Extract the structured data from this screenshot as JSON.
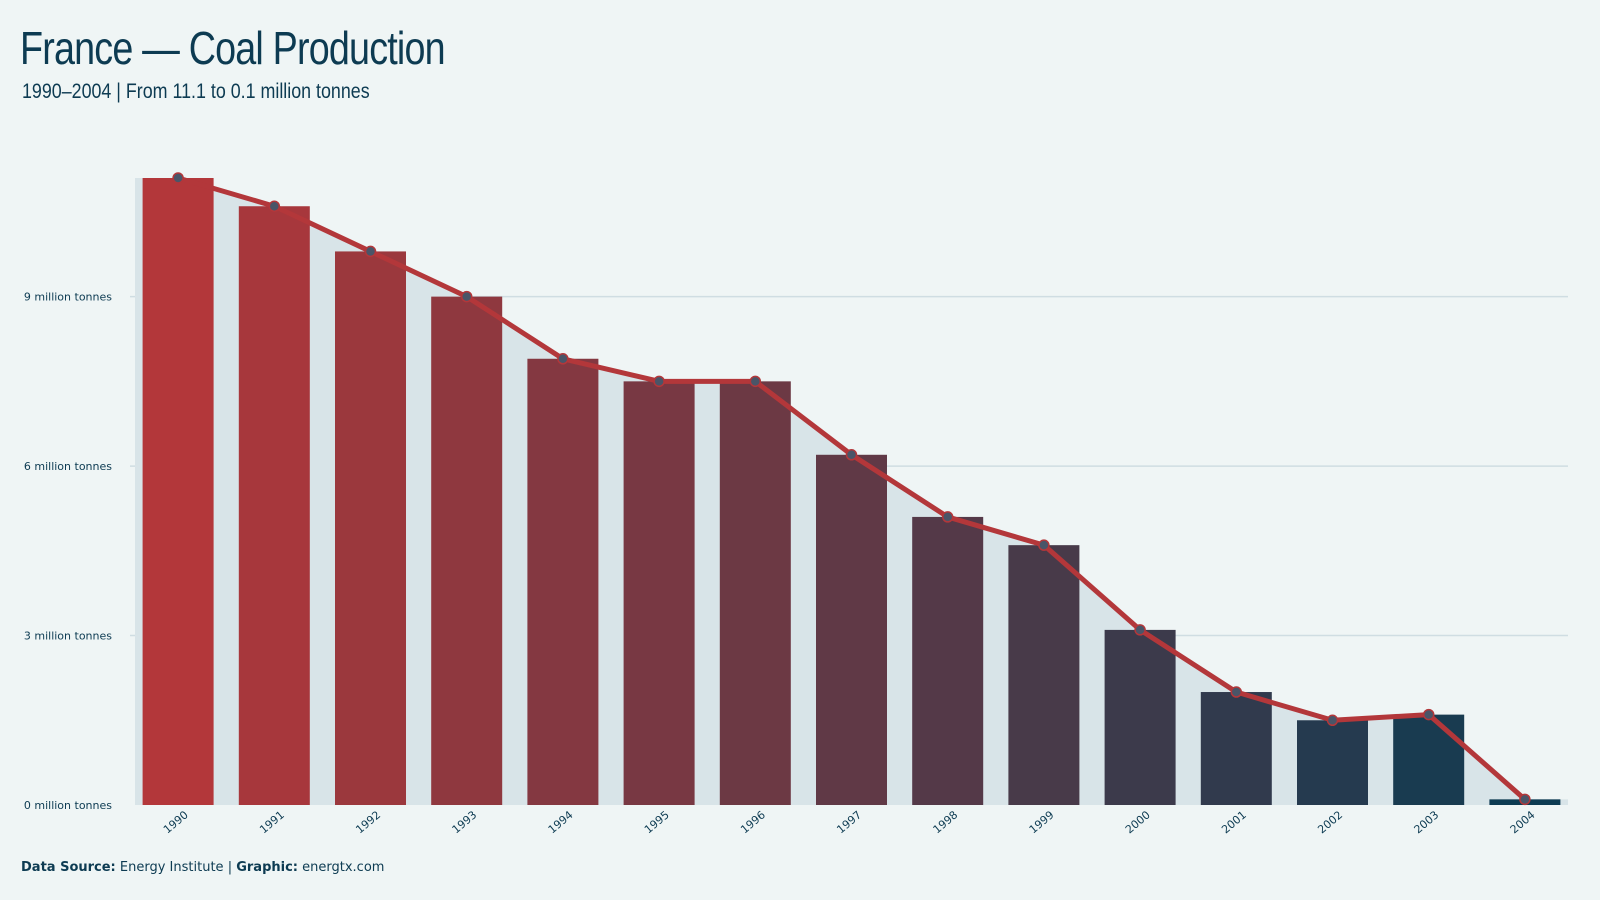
{
  "header": {
    "title": "France — Coal Production",
    "subtitle": "1990–2004 | From 11.1 to 0.1 million tonnes"
  },
  "footer": {
    "source_label": "Data Source:",
    "source_value": "Energy Institute",
    "separator": "|",
    "graphic_label": "Graphic:",
    "graphic_value": "energtx.com"
  },
  "colors": {
    "background": "#eff5f5",
    "band": "#d8e4e8",
    "line": "#b3373a",
    "bar_start": "#b3373a",
    "bar_end": "#0d3b52",
    "text": "#0d3b52",
    "grid": "#cfdde2"
  },
  "chart_data": {
    "type": "bar",
    "categories": [
      "1990",
      "1991",
      "1992",
      "1993",
      "1994",
      "1995",
      "1996",
      "1997",
      "1998",
      "1999",
      "2000",
      "2001",
      "2002",
      "2003",
      "2004"
    ],
    "values": [
      11.1,
      10.6,
      9.8,
      9.0,
      7.9,
      7.5,
      7.5,
      6.2,
      5.1,
      4.6,
      3.1,
      2.0,
      1.5,
      1.6,
      0.1
    ],
    "ylim": [
      0,
      11.1
    ],
    "yticks": [
      0,
      3,
      6,
      9
    ],
    "ytick_labels": [
      "0 million tonnes",
      "3 million tonnes",
      "6 million tonnes",
      "9 million tonnes"
    ],
    "overlay": "line-with-markers",
    "grid": true
  }
}
